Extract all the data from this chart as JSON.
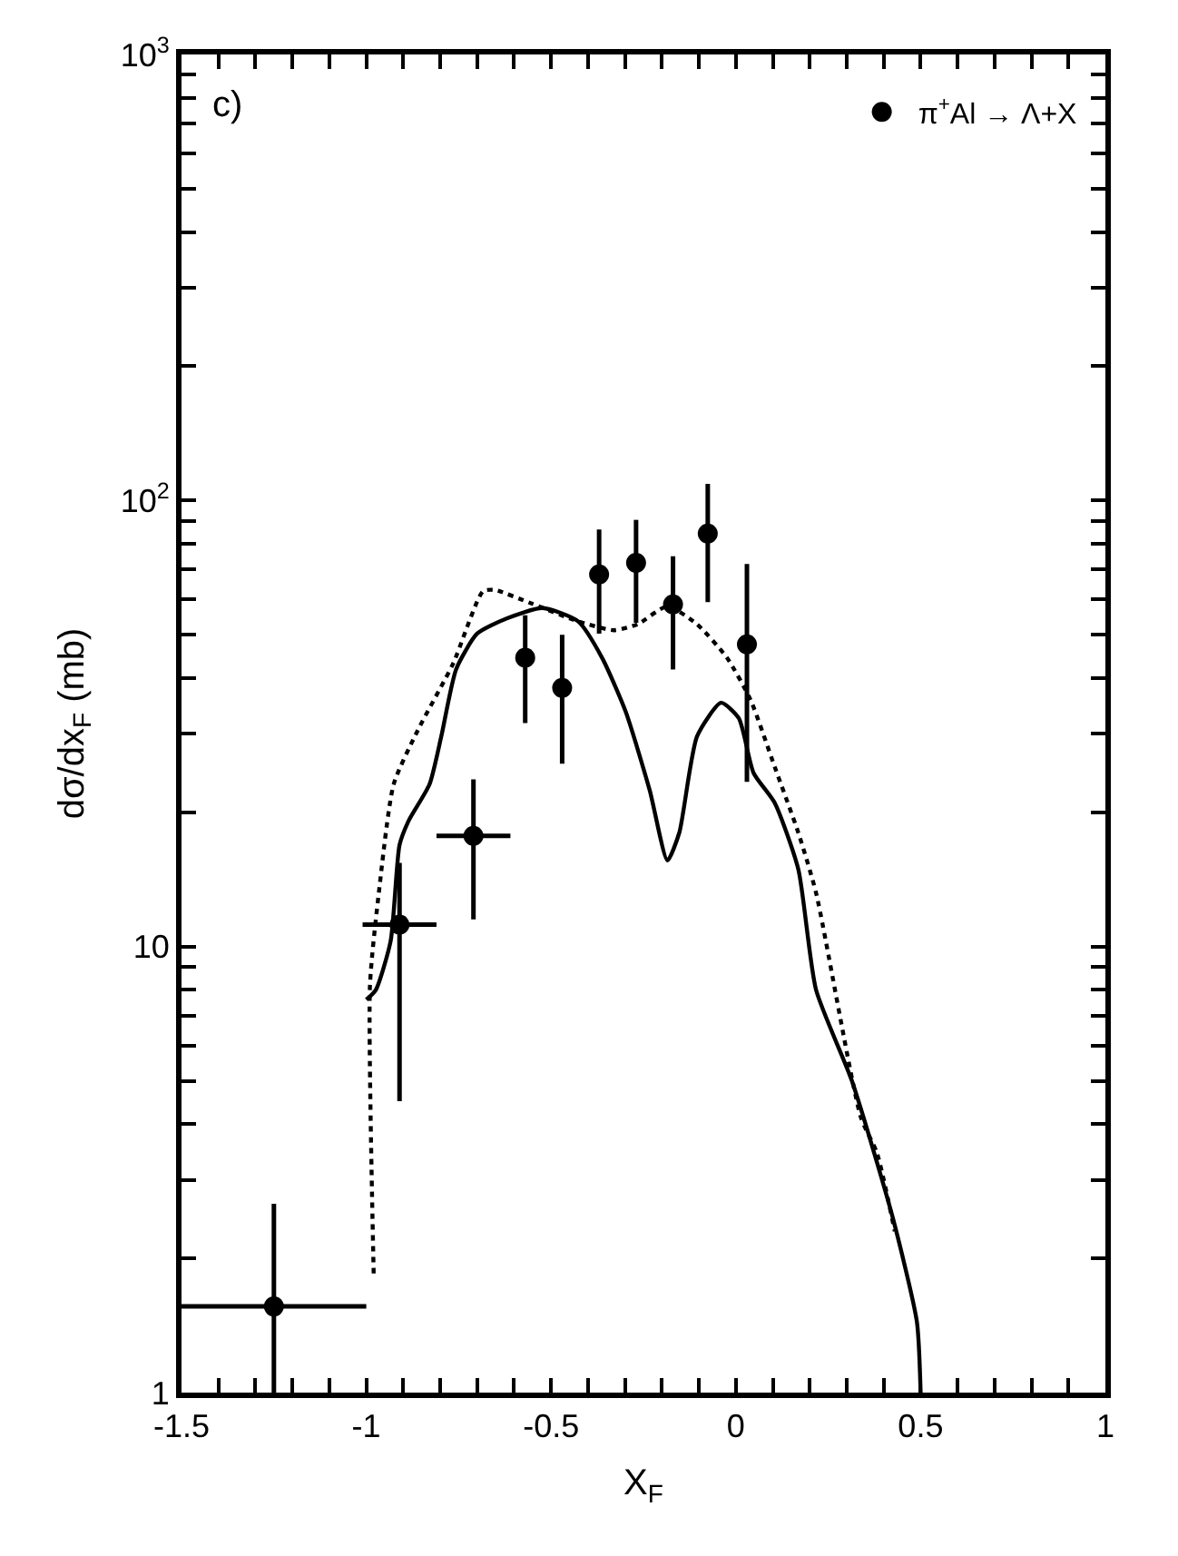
{
  "chart_data": {
    "type": "scatter",
    "xlabel": "X$_{F}$",
    "ylabel": "dσ/dx$_{F}$ (mb)",
    "log": "y",
    "legend": "top right",
    "xlim": [
      -1.5,
      1
    ],
    "ylim": [
      1,
      1000
    ],
    "xticks": [
      -1.5,
      {
        "value": -1.4,
        "label": null
      },
      {
        "value": -1.3,
        "label": null
      },
      {
        "value": -1.2,
        "label": null
      },
      {
        "value": -1.1,
        "label": null
      },
      -1,
      {
        "value": -0.9,
        "label": null
      },
      {
        "value": -0.8,
        "label": null
      },
      {
        "value": -0.7,
        "label": null
      },
      {
        "value": -0.6,
        "label": null
      },
      -0.5,
      {
        "value": -0.4,
        "label": null
      },
      {
        "value": -0.3,
        "label": null
      },
      {
        "value": -0.2,
        "label": null
      },
      {
        "value": -0.1,
        "label": null
      },
      0,
      {
        "value": 0.1,
        "label": null
      },
      {
        "value": 0.2,
        "label": null
      },
      {
        "value": 0.3,
        "label": null
      },
      {
        "value": 0.4,
        "label": null
      },
      0.5,
      {
        "value": 0.6,
        "label": null
      },
      {
        "value": 0.7,
        "label": null
      },
      {
        "value": 0.8,
        "label": null
      },
      {
        "value": 0.9,
        "label": null
      },
      1
    ],
    "yticks": [
      1,
      {
        "value": 2,
        "label": null
      },
      {
        "value": 3,
        "label": null
      },
      {
        "value": 4,
        "label": null
      },
      {
        "value": 5,
        "label": null
      },
      {
        "value": 6,
        "label": null
      },
      {
        "value": 7,
        "label": null
      },
      {
        "value": 8,
        "label": null
      },
      {
        "value": 9,
        "label": null
      },
      10,
      {
        "value": 20,
        "label": null
      },
      {
        "value": 30,
        "label": null
      },
      {
        "value": 40,
        "label": null
      },
      {
        "value": 50,
        "label": null
      },
      {
        "value": 60,
        "label": null
      },
      {
        "value": 70,
        "label": null
      },
      {
        "value": 80,
        "label": null
      },
      {
        "value": 90,
        "label": null
      },
      {
        "value": 100,
        "label": "10$^{2}$"
      },
      {
        "value": 200,
        "label": null
      },
      {
        "value": 300,
        "label": null
      },
      {
        "value": 400,
        "label": null
      },
      {
        "value": 500,
        "label": null
      },
      {
        "value": 600,
        "label": null
      },
      {
        "value": 700,
        "label": null
      },
      {
        "value": 800,
        "label": null
      },
      {
        "value": 900,
        "label": null
      },
      {
        "value": 1000,
        "label": "10$^{3}$"
      }
    ],
    "annotations": [
      "c)"
    ],
    "series": [
      {
        "name": "π$^{+}$Al → Λ+X",
        "color": "#000000",
        "marker": "circle",
        "x": [
          -1.25,
          -0.91,
          -0.71,
          -0.57,
          -0.47,
          -0.37,
          -0.27,
          -0.17,
          -0.076,
          0.03
        ],
        "values": [
          1.56,
          11.2,
          17.7,
          44.4,
          38.0,
          68.3,
          72.5,
          58.5,
          84.3,
          47.6
        ],
        "errors": [
          [
            1.0,
            2.65
          ],
          [
            4.5,
            15.4
          ],
          [
            11.5,
            23.7
          ],
          [
            31.7,
            55.3
          ],
          [
            25.7,
            50.0
          ],
          [
            50.3,
            86.1
          ],
          [
            53.2,
            90.5
          ],
          [
            41.8,
            75.0
          ],
          [
            59.2,
            109.0
          ],
          [
            23.4,
            72.1
          ]
        ],
        "xerrors": [
          0.25,
          0.1,
          0.1,
          null,
          null,
          null,
          null,
          null,
          null,
          null
        ]
      },
      {
        "type": "line",
        "color": "#000000",
        "line_style": "solid",
        "marker": "none",
        "x": [
          -1.0,
          -0.974,
          -0.934,
          -0.91,
          -0.886,
          -0.829,
          -0.797,
          -0.757,
          -0.7,
          -0.62,
          -0.523,
          -0.427,
          -0.362,
          -0.298,
          -0.233,
          -0.185,
          -0.153,
          -0.105,
          -0.04,
          0.008,
          0.048,
          0.105,
          0.169,
          0.217,
          0.314,
          0.425,
          0.49,
          0.5
        ],
        "values": [
          7.6,
          8.0,
          10.3,
          16.9,
          19.1,
          23.1,
          29.6,
          41.8,
          50.3,
          54.4,
          57.4,
          53.6,
          44.4,
          33.6,
          22.4,
          15.6,
          18.0,
          29.6,
          35.2,
          32.5,
          24.5,
          21.0,
          14.9,
          8.0,
          5.0,
          2.46,
          1.44,
          1.0
        ]
      },
      {
        "type": "line",
        "color": "#000000",
        "line_style": "dotted",
        "marker": "none",
        "x": [
          -0.98,
          -0.99,
          -0.966,
          -0.926,
          -0.861,
          -0.765,
          -0.684,
          -0.652,
          -0.556,
          -0.427,
          -0.33,
          -0.266,
          -0.185,
          -0.105,
          -0.024,
          0.04,
          0.105,
          0.169,
          0.217,
          0.338,
          0.382,
          0.43
        ],
        "values": [
          1.85,
          8.2,
          13.2,
          23.1,
          30.5,
          43.1,
          62.6,
          63.0,
          58.9,
          53.6,
          51.2,
          52.8,
          57.9,
          52.8,
          44.4,
          35.7,
          25.3,
          18.0,
          13.2,
          4.15,
          3.44,
          2.3
        ]
      }
    ]
  }
}
